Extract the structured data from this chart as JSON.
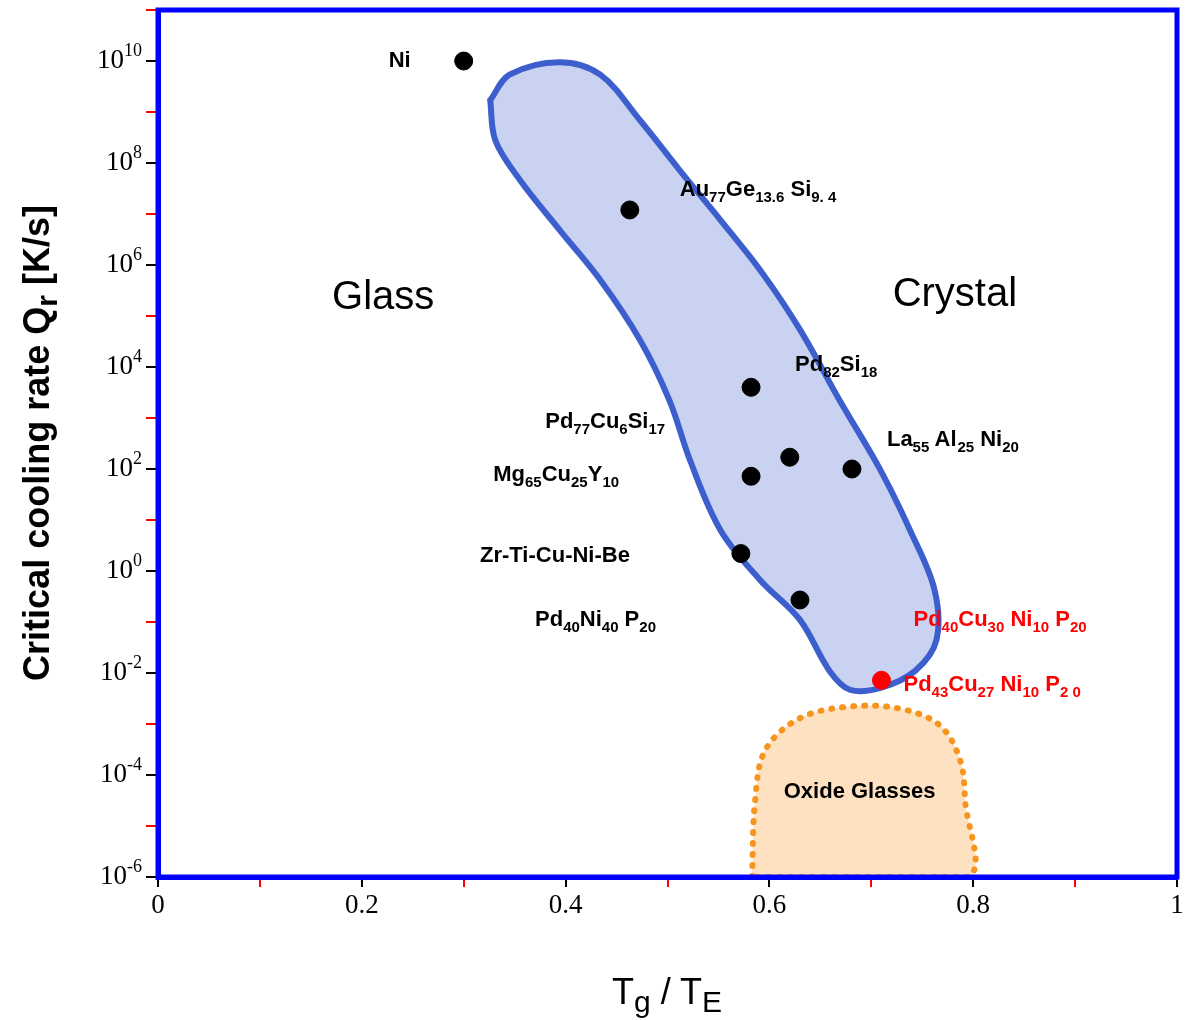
{
  "chart_data": {
    "type": "scatter",
    "xlabel": "T$_{g}$ / T$_{E}$",
    "ylabel": "Critical cooling rate  Q$_{r}$  [K/s]",
    "log": "y",
    "grid": false,
    "legend": false,
    "xlim": [
      0,
      1
    ],
    "xticks": [
      0,
      {
        "value": 0.1,
        "label": null
      },
      0.2,
      {
        "value": 0.3,
        "label": null
      },
      0.4,
      {
        "value": 0.5,
        "label": null
      },
      0.6,
      {
        "value": 0.7,
        "label": null
      },
      0.8,
      {
        "value": 0.9,
        "label": null
      },
      1
    ],
    "ylim": [
      1e-06,
      100000000000.0
    ],
    "yticks": [
      {
        "value": 1e-06,
        "label": "10$^{-6}$"
      },
      {
        "value": 1e-05,
        "label": null
      },
      {
        "value": 0.0001,
        "label": "10$^{-4}$"
      },
      {
        "value": 0.001,
        "label": null
      },
      {
        "value": 0.01,
        "label": "10$^{-2}$"
      },
      {
        "value": 0.1,
        "label": null
      },
      {
        "value": 1,
        "label": "10$^{0}$"
      },
      {
        "value": 10,
        "label": null
      },
      {
        "value": 100,
        "label": "10$^{2}$"
      },
      {
        "value": 1000,
        "label": null
      },
      {
        "value": 10000.0,
        "label": "10$^{4}$"
      },
      {
        "value": 100000.0,
        "label": null
      },
      {
        "value": 1000000.0,
        "label": "10$^{6}$"
      },
      {
        "value": 10000000.0,
        "label": null
      },
      {
        "value": 100000000.0,
        "label": "10$^{8}$"
      },
      {
        "value": 1000000000.0,
        "label": null
      },
      {
        "value": 10000000000.0,
        "label": "10$^{10}$"
      },
      {
        "value": 100000000000.0,
        "label": null
      }
    ],
    "series": [
      {
        "type": "area",
        "color": "#3c5fcd",
        "marker": "none",
        "x": [
          0.326,
          0.345,
          0.394,
          0.434,
          0.473,
          0.512,
          0.552,
          0.591,
          0.63,
          0.669,
          0.709,
          0.738,
          0.762,
          0.764,
          0.743,
          0.709,
          0.679,
          0.659,
          0.63,
          0.591,
          0.552,
          0.522,
          0.502,
          0.473,
          0.434,
          0.394,
          0.355,
          0.331,
          0.326
        ],
        "values": [
          1700000000.0,
          5400000000.0,
          9500000000.0,
          5400000000.0,
          690000000.0,
          72000000.0,
          7600000.0,
          790000.0,
          54000.0,
          2200,
          95,
          6.3,
          0.43,
          0.045,
          0.011,
          0.0051,
          0.0047,
          0.011,
          0.11,
          0.66,
          6.3,
          150,
          2200,
          34000.0,
          510000.0,
          4900000.0,
          47000000.0,
          280000000.0,
          1700000000.0
        ]
      },
      {
        "type": "area",
        "name": "Oxide Glasses",
        "color": "#f7941d",
        "line_style": "dotted",
        "marker": "none",
        "x": [
          0.583,
          0.586,
          0.596,
          0.63,
          0.679,
          0.728,
          0.767,
          0.787,
          0.792,
          0.794,
          0.583
        ],
        "values": [
          1e-06,
          3.2e-05,
          0.00031,
          0.0013,
          0.0022,
          0.002,
          0.00095,
          0.0002,
          3.2e-05,
          1e-06,
          1e-06
        ]
      },
      {
        "type": "scatter",
        "color": "#000000",
        "marker": "circle",
        "x": [
          0.3,
          0.463,
          0.582,
          0.62,
          0.681,
          0.582,
          0.572,
          0.63
        ],
        "values": [
          10000000000.0,
          12000000.0,
          4000,
          170,
          100,
          72,
          2.2,
          0.27
        ]
      },
      {
        "type": "scatter",
        "color": "#ff0000",
        "marker": "circle",
        "x": [
          0.71
        ],
        "values": [
          0.0072
        ]
      }
    ],
    "annotations": [
      {
        "text": "Ni",
        "x": 0.3,
        "y": 10000000000.0
      },
      {
        "text": "Au$_{77}$Ge$_{13.6}$ Si$_{9. 4}$",
        "x": 0.463,
        "y": 12000000.0
      },
      {
        "text": "Pd$_{82}$Si$_{18}$",
        "x": 0.582,
        "y": 4000
      },
      "Pd$_{77}$Cu$_{6}$Si$_{17}$",
      {
        "text": "La$_{55}$ Al$_{25}$ Ni$_{20}$",
        "x": 0.681,
        "y": 100
      },
      "Mg$_{65}$Cu$_{25}$Y$_{10}$",
      "Zr-Ti-Cu-Ni-Be",
      "Pd$_{40}$Ni$_{40}$ P$_{20}$",
      {
        "text": "Pd$_{40}$Cu$_{30}$ Ni$_{10}$ P$_{20}$",
        "x": 0.71,
        "y": 0.0072
      },
      {
        "text": "Pd$_{43}$Cu$_{27}$ Ni$_{10}$ P$_{2 0}$",
        "x": 0.71,
        "y": 0.0072
      },
      "Glass",
      "Crystal"
    ]
  }
}
